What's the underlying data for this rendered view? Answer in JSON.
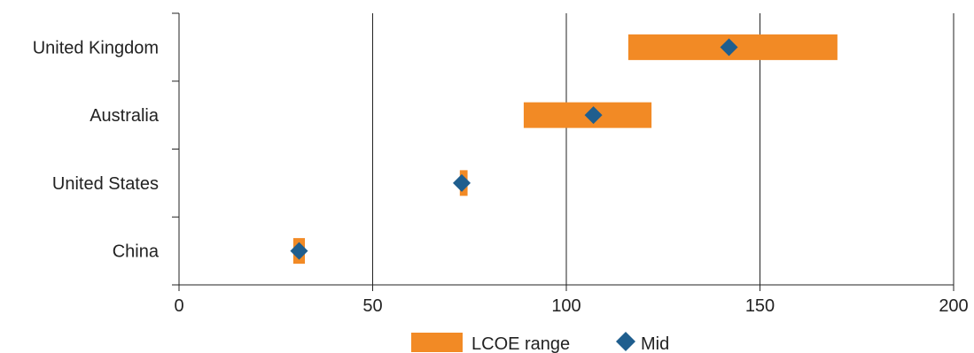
{
  "chart_data": {
    "type": "bar",
    "orientation": "horizontal",
    "categories": [
      "United Kingdom",
      "Australia",
      "United States",
      "China"
    ],
    "series": [
      {
        "name": "LCOE range",
        "kind": "range",
        "low": [
          116,
          89,
          72.5,
          29.5
        ],
        "high": [
          170,
          122,
          74.5,
          32.5
        ],
        "color": "#f28a25"
      },
      {
        "name": "Mid",
        "kind": "marker",
        "values": [
          142,
          107,
          73,
          31
        ],
        "color": "#1f5e8e"
      }
    ],
    "xlim": [
      0,
      200
    ],
    "xticks": [
      0,
      50,
      100,
      150,
      200
    ],
    "xlabel": "",
    "ylabel": "",
    "title": "",
    "grid": "vertical",
    "legend_position": "bottom"
  }
}
